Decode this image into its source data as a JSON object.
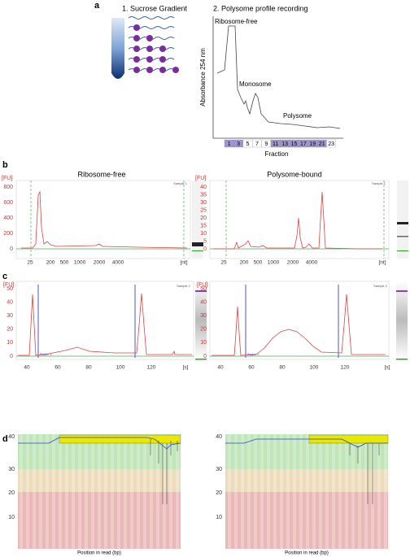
{
  "panel_a": {
    "label": "a",
    "step1": "1. Sucrose Gradient",
    "step2": "2. Polysome profile recording",
    "y_axis": "Absorbance 254 nm",
    "x_axis": "Fraction",
    "peaks": [
      "Ribosome-free",
      "Monosome",
      "Polysome"
    ],
    "fractions": [
      1,
      3,
      5,
      7,
      9,
      11,
      13,
      15,
      17,
      19,
      21,
      23
    ]
  },
  "panel_b": {
    "label": "b",
    "left": {
      "title": "Ribosome-free",
      "unit_y": "[FU]",
      "yticks": [
        800,
        600,
        400,
        200,
        0
      ],
      "unit_x": "[nt]",
      "xticks": [
        25,
        200,
        500,
        1000,
        2000,
        4000
      ],
      "sample": "Sample 1"
    },
    "right": {
      "title": "Polysome-bound",
      "unit_y": "[FU]",
      "yticks": [
        40,
        35,
        30,
        25,
        20,
        15,
        10,
        5,
        0
      ],
      "unit_x": "[nt]",
      "xticks": [
        25,
        200,
        500,
        1000,
        2000,
        4000
      ],
      "sample": "Sample 1"
    }
  },
  "panel_c": {
    "label": "c",
    "left": {
      "unit_y": "[FU]",
      "yticks": [
        50,
        40,
        30,
        20,
        10,
        0
      ],
      "unit_x": "[s]",
      "xticks": [
        40,
        60,
        80,
        100,
        120
      ],
      "sample": "Sample 1",
      "region": "Region 1"
    },
    "right": {
      "unit_y": "[FU]",
      "yticks": [
        50,
        40,
        30,
        20,
        10,
        0
      ],
      "unit_x": "[s]",
      "xticks": [
        40,
        60,
        80,
        100,
        120
      ],
      "sample": "Sample 2",
      "region": "Region 1"
    }
  },
  "panel_d": {
    "label": "d",
    "left": {
      "yticks": [
        40,
        30,
        20,
        10
      ],
      "x_axis": "Position in read (bp)"
    },
    "right": {
      "yticks": [
        40,
        30,
        20,
        10
      ],
      "x_axis": "Position in read (bp)"
    }
  }
}
